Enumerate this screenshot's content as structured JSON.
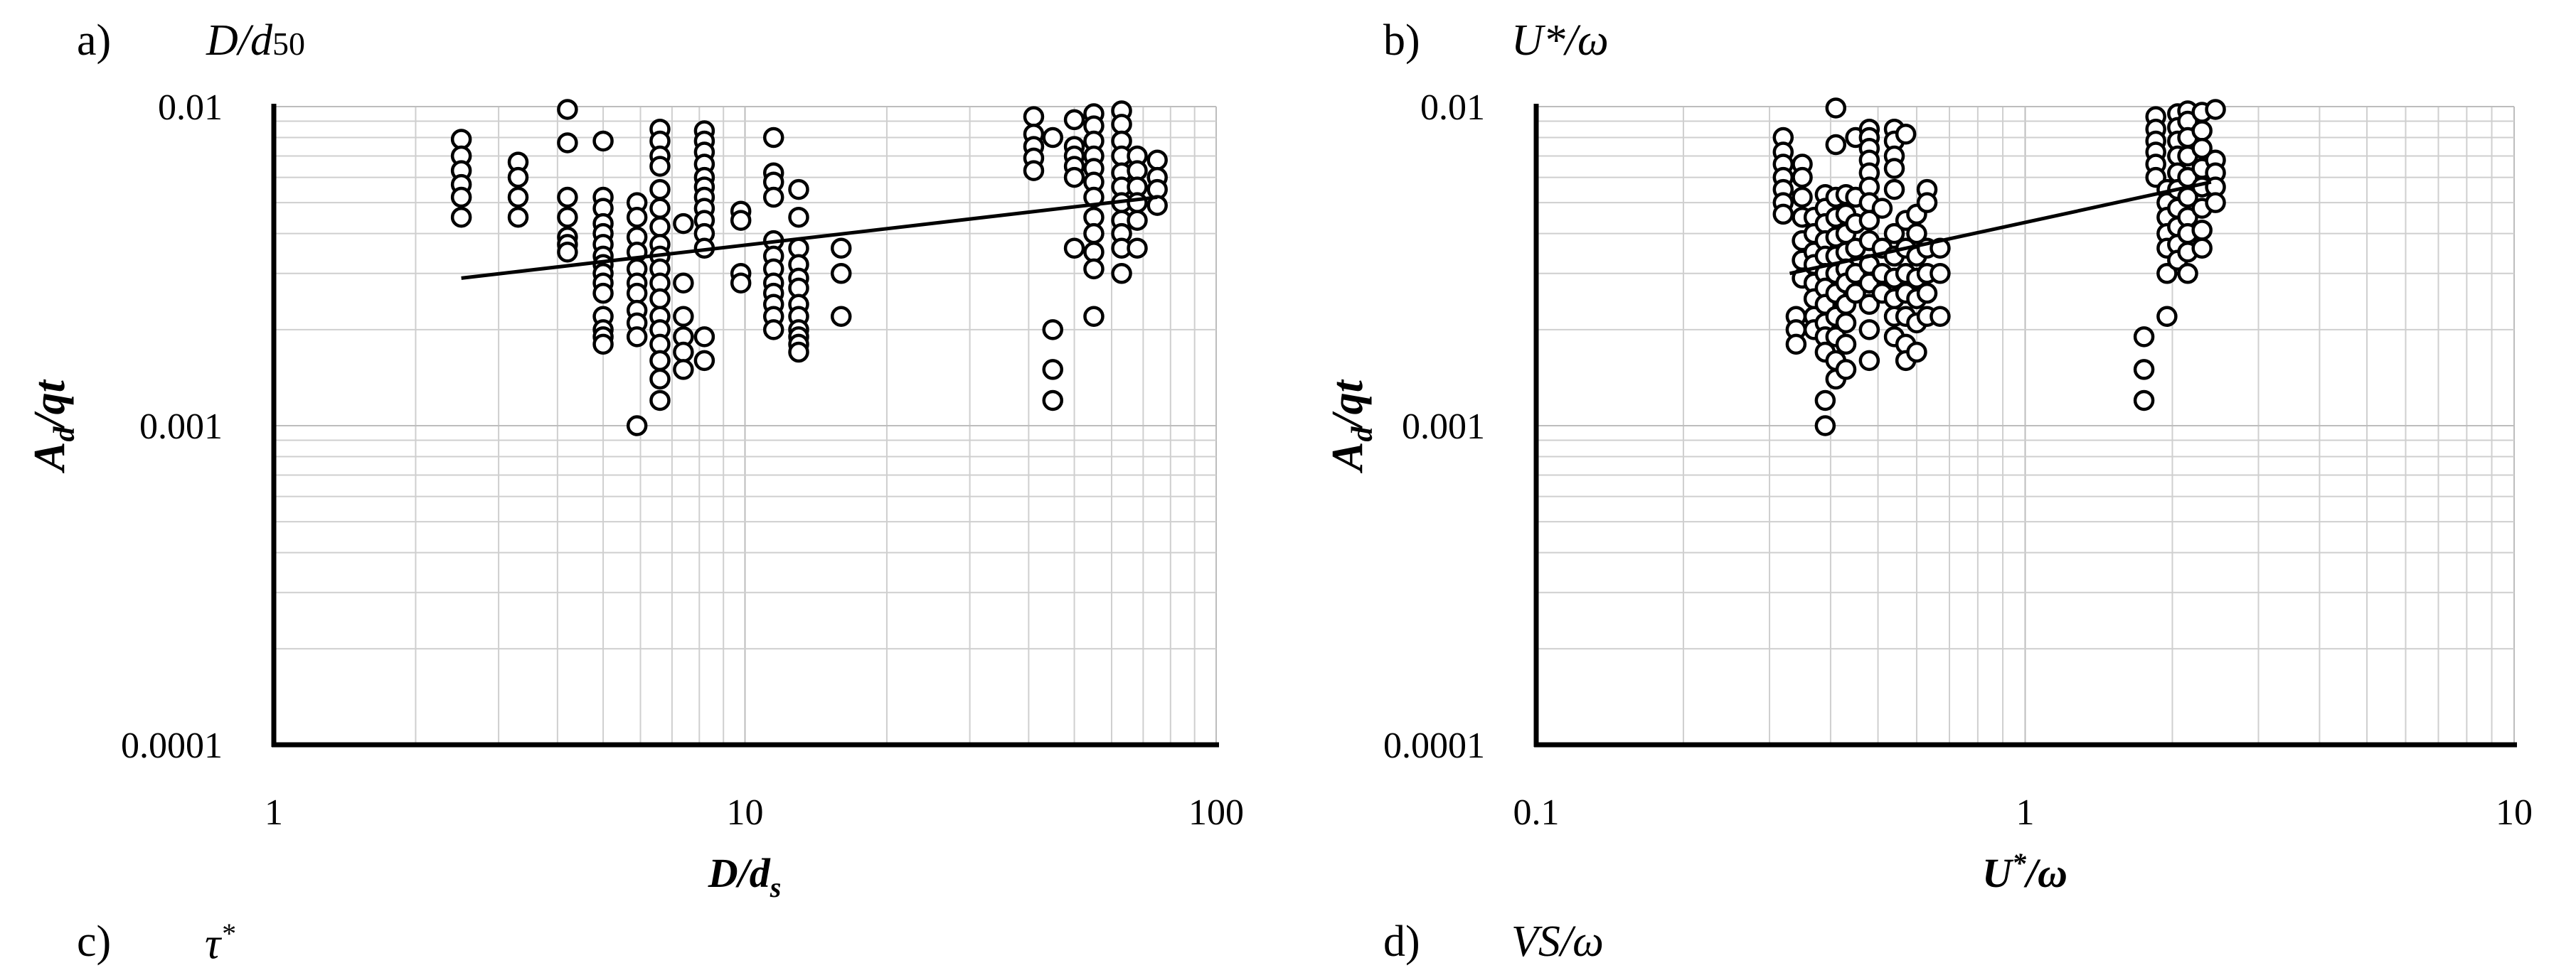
{
  "panels": [
    {
      "letter": "a)",
      "var_main": "D/d",
      "var_sub": "50",
      "var_sup": ""
    },
    {
      "letter": "b)",
      "var_main": "U*/ω",
      "var_sub": "",
      "var_sup": ""
    },
    {
      "letter": "c)",
      "var_main": "τ",
      "var_sub": "",
      "var_sup": "*"
    },
    {
      "letter": "d)",
      "var_main": "VS/ω",
      "var_sub": "",
      "var_sup": ""
    }
  ],
  "chart_data": [
    {
      "type": "scatter",
      "xscale": "log",
      "yscale": "log",
      "xlim": [
        1,
        100
      ],
      "ylim": [
        0.0001,
        0.01
      ],
      "xticks": [
        "1",
        "10",
        "100"
      ],
      "yticks": [
        "0.0001",
        "0.001",
        "0.01"
      ],
      "xlabel": "D/d",
      "xlabel_sub": "s",
      "ylabel": "A/qt",
      "ylabel_sub": "d",
      "marker": "open-circle",
      "grid": true,
      "trendline": {
        "x": [
          2.5,
          75
        ],
        "y": [
          0.0029,
          0.0052
        ]
      },
      "points": [
        [
          2.5,
          0.0079
        ],
        [
          2.5,
          0.007
        ],
        [
          2.5,
          0.0063
        ],
        [
          2.5,
          0.0057
        ],
        [
          2.5,
          0.0052
        ],
        [
          2.5,
          0.0045
        ],
        [
          3.3,
          0.0067
        ],
        [
          3.3,
          0.006
        ],
        [
          3.3,
          0.0052
        ],
        [
          3.3,
          0.0045
        ],
        [
          4.2,
          0.0098
        ],
        [
          4.2,
          0.0077
        ],
        [
          4.2,
          0.0052
        ],
        [
          4.2,
          0.0045
        ],
        [
          4.2,
          0.0039
        ],
        [
          4.2,
          0.0037
        ],
        [
          4.2,
          0.0035
        ],
        [
          5,
          0.0078
        ],
        [
          5,
          0.0052
        ],
        [
          5,
          0.0048
        ],
        [
          5,
          0.0043
        ],
        [
          5,
          0.004
        ],
        [
          5,
          0.0037
        ],
        [
          5,
          0.0034
        ],
        [
          5,
          0.0032
        ],
        [
          5,
          0.003
        ],
        [
          5,
          0.0028
        ],
        [
          5,
          0.0026
        ],
        [
          5,
          0.0022
        ],
        [
          5,
          0.002
        ],
        [
          5,
          0.0019
        ],
        [
          5,
          0.0018
        ],
        [
          5.9,
          0.005
        ],
        [
          5.9,
          0.0045
        ],
        [
          5.9,
          0.0039
        ],
        [
          5.9,
          0.0035
        ],
        [
          5.9,
          0.0031
        ],
        [
          5.9,
          0.0028
        ],
        [
          5.9,
          0.0026
        ],
        [
          5.9,
          0.0023
        ],
        [
          5.9,
          0.0021
        ],
        [
          5.9,
          0.0019
        ],
        [
          5.9,
          0.001
        ],
        [
          6.6,
          0.0085
        ],
        [
          6.6,
          0.0078
        ],
        [
          6.6,
          0.007
        ],
        [
          6.6,
          0.0065
        ],
        [
          6.6,
          0.0055
        ],
        [
          6.6,
          0.0048
        ],
        [
          6.6,
          0.0042
        ],
        [
          6.6,
          0.0037
        ],
        [
          6.6,
          0.0034
        ],
        [
          6.6,
          0.0031
        ],
        [
          6.6,
          0.0028
        ],
        [
          6.6,
          0.0025
        ],
        [
          6.6,
          0.0022
        ],
        [
          6.6,
          0.002
        ],
        [
          6.6,
          0.0018
        ],
        [
          6.6,
          0.0016
        ],
        [
          6.6,
          0.0014
        ],
        [
          6.6,
          0.0012
        ],
        [
          7.4,
          0.0043
        ],
        [
          7.4,
          0.0028
        ],
        [
          7.4,
          0.0022
        ],
        [
          7.4,
          0.0019
        ],
        [
          7.4,
          0.0017
        ],
        [
          7.4,
          0.0015
        ],
        [
          8.2,
          0.0084
        ],
        [
          8.2,
          0.0078
        ],
        [
          8.2,
          0.0072
        ],
        [
          8.2,
          0.0066
        ],
        [
          8.2,
          0.006
        ],
        [
          8.2,
          0.0056
        ],
        [
          8.2,
          0.0052
        ],
        [
          8.2,
          0.0048
        ],
        [
          8.2,
          0.0044
        ],
        [
          8.2,
          0.004
        ],
        [
          8.2,
          0.0036
        ],
        [
          8.2,
          0.0019
        ],
        [
          8.2,
          0.0016
        ],
        [
          9.8,
          0.0047
        ],
        [
          9.8,
          0.0044
        ],
        [
          9.8,
          0.003
        ],
        [
          9.8,
          0.0028
        ],
        [
          11.5,
          0.008
        ],
        [
          11.5,
          0.0062
        ],
        [
          11.5,
          0.0058
        ],
        [
          11.5,
          0.0052
        ],
        [
          11.5,
          0.0038
        ],
        [
          11.5,
          0.0034
        ],
        [
          11.5,
          0.0031
        ],
        [
          11.5,
          0.0028
        ],
        [
          11.5,
          0.0026
        ],
        [
          11.5,
          0.0024
        ],
        [
          11.5,
          0.0022
        ],
        [
          11.5,
          0.002
        ],
        [
          13,
          0.0055
        ],
        [
          13,
          0.0045
        ],
        [
          13,
          0.0036
        ],
        [
          13,
          0.0032
        ],
        [
          13,
          0.0029
        ],
        [
          13,
          0.0027
        ],
        [
          13,
          0.0024
        ],
        [
          13,
          0.0022
        ],
        [
          13,
          0.002
        ],
        [
          13,
          0.0019
        ],
        [
          13,
          0.0018
        ],
        [
          13,
          0.0017
        ],
        [
          16,
          0.0036
        ],
        [
          16,
          0.003
        ],
        [
          16,
          0.0022
        ],
        [
          41,
          0.0093
        ],
        [
          41,
          0.0082
        ],
        [
          41,
          0.0075
        ],
        [
          41,
          0.0069
        ],
        [
          41,
          0.0063
        ],
        [
          45,
          0.008
        ],
        [
          45,
          0.002
        ],
        [
          45,
          0.0015
        ],
        [
          45,
          0.0012
        ],
        [
          50,
          0.0091
        ],
        [
          50,
          0.0075
        ],
        [
          50,
          0.007
        ],
        [
          50,
          0.0065
        ],
        [
          50,
          0.006
        ],
        [
          50,
          0.0036
        ],
        [
          55,
          0.0095
        ],
        [
          55,
          0.0087
        ],
        [
          55,
          0.0078
        ],
        [
          55,
          0.007
        ],
        [
          55,
          0.0064
        ],
        [
          55,
          0.0058
        ],
        [
          55,
          0.0052
        ],
        [
          55,
          0.0045
        ],
        [
          55,
          0.004
        ],
        [
          55,
          0.0035
        ],
        [
          55,
          0.0031
        ],
        [
          55,
          0.0022
        ],
        [
          63,
          0.0097
        ],
        [
          63,
          0.0088
        ],
        [
          63,
          0.0078
        ],
        [
          63,
          0.007
        ],
        [
          63,
          0.0062
        ],
        [
          63,
          0.0056
        ],
        [
          63,
          0.005
        ],
        [
          63,
          0.0044
        ],
        [
          63,
          0.004
        ],
        [
          63,
          0.0036
        ],
        [
          63,
          0.003
        ],
        [
          68,
          0.007
        ],
        [
          68,
          0.0063
        ],
        [
          68,
          0.0056
        ],
        [
          68,
          0.005
        ],
        [
          68,
          0.0044
        ],
        [
          68,
          0.0036
        ],
        [
          75,
          0.0068
        ],
        [
          75,
          0.006
        ],
        [
          75,
          0.0055
        ],
        [
          75,
          0.0049
        ]
      ]
    },
    {
      "type": "scatter",
      "xscale": "log",
      "yscale": "log",
      "xlim": [
        0.1,
        10
      ],
      "ylim": [
        0.0001,
        0.01
      ],
      "xticks": [
        "0.1",
        "1",
        "10"
      ],
      "yticks": [
        "0.0001",
        "0.001",
        "0.01"
      ],
      "xlabel": "U",
      "xlabel_sup": "*",
      "xlabel_tail": "/ω",
      "ylabel": "A/qt",
      "ylabel_sub": "d",
      "marker": "open-circle",
      "grid": true,
      "trendline": {
        "x": [
          0.33,
          2.4
        ],
        "y": [
          0.003,
          0.0058
        ]
      },
      "points": [
        [
          0.32,
          0.008
        ],
        [
          0.32,
          0.0072
        ],
        [
          0.32,
          0.0066
        ],
        [
          0.32,
          0.006
        ],
        [
          0.32,
          0.0055
        ],
        [
          0.32,
          0.005
        ],
        [
          0.32,
          0.0046
        ],
        [
          0.34,
          0.0022
        ],
        [
          0.34,
          0.002
        ],
        [
          0.34,
          0.0018
        ],
        [
          0.35,
          0.0066
        ],
        [
          0.35,
          0.006
        ],
        [
          0.35,
          0.0052
        ],
        [
          0.35,
          0.0045
        ],
        [
          0.35,
          0.0038
        ],
        [
          0.35,
          0.0033
        ],
        [
          0.35,
          0.0029
        ],
        [
          0.37,
          0.0045
        ],
        [
          0.37,
          0.004
        ],
        [
          0.37,
          0.0035
        ],
        [
          0.37,
          0.0032
        ],
        [
          0.37,
          0.0028
        ],
        [
          0.37,
          0.0025
        ],
        [
          0.37,
          0.0022
        ],
        [
          0.37,
          0.002
        ],
        [
          0.39,
          0.0053
        ],
        [
          0.39,
          0.0048
        ],
        [
          0.39,
          0.0043
        ],
        [
          0.39,
          0.0038
        ],
        [
          0.39,
          0.0034
        ],
        [
          0.39,
          0.003
        ],
        [
          0.39,
          0.0027
        ],
        [
          0.39,
          0.0024
        ],
        [
          0.39,
          0.0021
        ],
        [
          0.39,
          0.0019
        ],
        [
          0.39,
          0.0017
        ],
        [
          0.39,
          0.0012
        ],
        [
          0.39,
          0.001
        ],
        [
          0.41,
          0.0099
        ],
        [
          0.41,
          0.0076
        ],
        [
          0.41,
          0.0052
        ],
        [
          0.41,
          0.0045
        ],
        [
          0.41,
          0.0039
        ],
        [
          0.41,
          0.0034
        ],
        [
          0.41,
          0.003
        ],
        [
          0.41,
          0.0026
        ],
        [
          0.41,
          0.0022
        ],
        [
          0.41,
          0.0019
        ],
        [
          0.41,
          0.0016
        ],
        [
          0.41,
          0.0014
        ],
        [
          0.43,
          0.0053
        ],
        [
          0.43,
          0.0046
        ],
        [
          0.43,
          0.004
        ],
        [
          0.43,
          0.0035
        ],
        [
          0.43,
          0.0031
        ],
        [
          0.43,
          0.0028
        ],
        [
          0.43,
          0.0024
        ],
        [
          0.43,
          0.0021
        ],
        [
          0.43,
          0.0018
        ],
        [
          0.43,
          0.0015
        ],
        [
          0.45,
          0.008
        ],
        [
          0.45,
          0.0052
        ],
        [
          0.45,
          0.0043
        ],
        [
          0.45,
          0.0036
        ],
        [
          0.45,
          0.003
        ],
        [
          0.45,
          0.0026
        ],
        [
          0.48,
          0.0085
        ],
        [
          0.48,
          0.008
        ],
        [
          0.48,
          0.0074
        ],
        [
          0.48,
          0.0068
        ],
        [
          0.48,
          0.0062
        ],
        [
          0.48,
          0.0056
        ],
        [
          0.48,
          0.005
        ],
        [
          0.48,
          0.0044
        ],
        [
          0.48,
          0.0038
        ],
        [
          0.48,
          0.0032
        ],
        [
          0.48,
          0.0028
        ],
        [
          0.48,
          0.0024
        ],
        [
          0.48,
          0.002
        ],
        [
          0.48,
          0.0016
        ],
        [
          0.51,
          0.0048
        ],
        [
          0.51,
          0.0036
        ],
        [
          0.51,
          0.003
        ],
        [
          0.51,
          0.0026
        ],
        [
          0.54,
          0.0085
        ],
        [
          0.54,
          0.0078
        ],
        [
          0.54,
          0.007
        ],
        [
          0.54,
          0.0064
        ],
        [
          0.54,
          0.0055
        ],
        [
          0.54,
          0.004
        ],
        [
          0.54,
          0.0034
        ],
        [
          0.54,
          0.0029
        ],
        [
          0.54,
          0.0025
        ],
        [
          0.54,
          0.0022
        ],
        [
          0.54,
          0.0019
        ],
        [
          0.57,
          0.0082
        ],
        [
          0.57,
          0.0044
        ],
        [
          0.57,
          0.0036
        ],
        [
          0.57,
          0.003
        ],
        [
          0.57,
          0.0026
        ],
        [
          0.57,
          0.0022
        ],
        [
          0.57,
          0.0018
        ],
        [
          0.57,
          0.0016
        ],
        [
          0.6,
          0.0046
        ],
        [
          0.6,
          0.004
        ],
        [
          0.6,
          0.0034
        ],
        [
          0.6,
          0.0029
        ],
        [
          0.6,
          0.0025
        ],
        [
          0.6,
          0.0021
        ],
        [
          0.6,
          0.0017
        ],
        [
          0.63,
          0.0055
        ],
        [
          0.63,
          0.005
        ],
        [
          0.63,
          0.0036
        ],
        [
          0.63,
          0.003
        ],
        [
          0.63,
          0.0026
        ],
        [
          0.63,
          0.0022
        ],
        [
          0.67,
          0.0036
        ],
        [
          0.67,
          0.003
        ],
        [
          0.67,
          0.0022
        ],
        [
          1.75,
          0.0019
        ],
        [
          1.75,
          0.0015
        ],
        [
          1.75,
          0.0012
        ],
        [
          1.85,
          0.0093
        ],
        [
          1.85,
          0.0085
        ],
        [
          1.85,
          0.0078
        ],
        [
          1.85,
          0.0072
        ],
        [
          1.85,
          0.0066
        ],
        [
          1.85,
          0.006
        ],
        [
          1.95,
          0.0055
        ],
        [
          1.95,
          0.005
        ],
        [
          1.95,
          0.0045
        ],
        [
          1.95,
          0.004
        ],
        [
          1.95,
          0.0036
        ],
        [
          1.95,
          0.003
        ],
        [
          1.95,
          0.0022
        ],
        [
          2.05,
          0.0095
        ],
        [
          2.05,
          0.0086
        ],
        [
          2.05,
          0.0078
        ],
        [
          2.05,
          0.007
        ],
        [
          2.05,
          0.0062
        ],
        [
          2.05,
          0.0055
        ],
        [
          2.05,
          0.0048
        ],
        [
          2.05,
          0.0042
        ],
        [
          2.05,
          0.0037
        ],
        [
          2.05,
          0.0033
        ],
        [
          2.15,
          0.0097
        ],
        [
          2.15,
          0.009
        ],
        [
          2.15,
          0.008
        ],
        [
          2.15,
          0.007
        ],
        [
          2.15,
          0.006
        ],
        [
          2.15,
          0.0052
        ],
        [
          2.15,
          0.0045
        ],
        [
          2.15,
          0.004
        ],
        [
          2.15,
          0.0035
        ],
        [
          2.15,
          0.003
        ],
        [
          2.3,
          0.0096
        ],
        [
          2.3,
          0.0084
        ],
        [
          2.3,
          0.0074
        ],
        [
          2.3,
          0.0064
        ],
        [
          2.3,
          0.0056
        ],
        [
          2.3,
          0.0048
        ],
        [
          2.3,
          0.0041
        ],
        [
          2.3,
          0.0036
        ],
        [
          2.45,
          0.0098
        ],
        [
          2.45,
          0.0068
        ],
        [
          2.45,
          0.0062
        ],
        [
          2.45,
          0.0056
        ],
        [
          2.45,
          0.005
        ]
      ]
    }
  ]
}
